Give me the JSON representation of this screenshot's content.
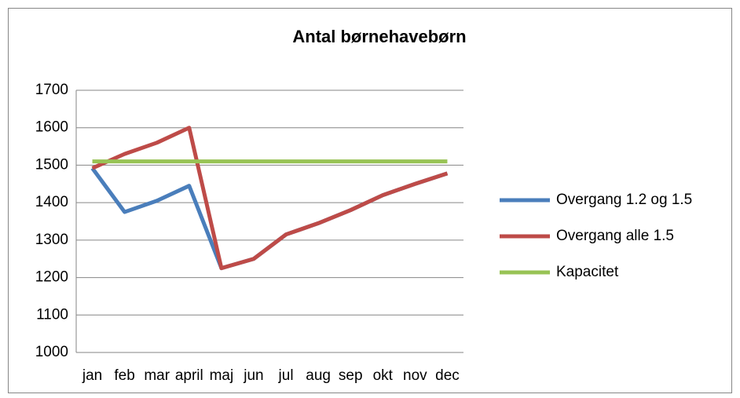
{
  "chart_data": {
    "type": "line",
    "title": "Antal børnehavebørn",
    "categories": [
      "jan",
      "feb",
      "mar",
      "april",
      "maj",
      "jun",
      "jul",
      "aug",
      "sep",
      "okt",
      "nov",
      "dec"
    ],
    "series": [
      {
        "name": "Overgang 1.2 og 1.5",
        "color": "#4a7ebb",
        "values": [
          1492,
          1375,
          1405,
          1445,
          1225,
          1250,
          1315,
          1345,
          1380,
          1420,
          1450,
          1478
        ]
      },
      {
        "name": "Overgang alle 1.5",
        "color": "#be4b48",
        "values": [
          1492,
          1530,
          1560,
          1600,
          1225,
          1250,
          1315,
          1345,
          1380,
          1420,
          1450,
          1478
        ]
      },
      {
        "name": "Kapacitet",
        "color": "#98c355",
        "values": [
          1510,
          1510,
          1510,
          1510,
          1510,
          1510,
          1510,
          1510,
          1510,
          1510,
          1510,
          1510
        ]
      }
    ],
    "ylim": [
      1000,
      1700
    ],
    "yticks": [
      1000,
      1100,
      1200,
      1300,
      1400,
      1500,
      1600,
      1700
    ],
    "grid": true,
    "legend": "right"
  }
}
